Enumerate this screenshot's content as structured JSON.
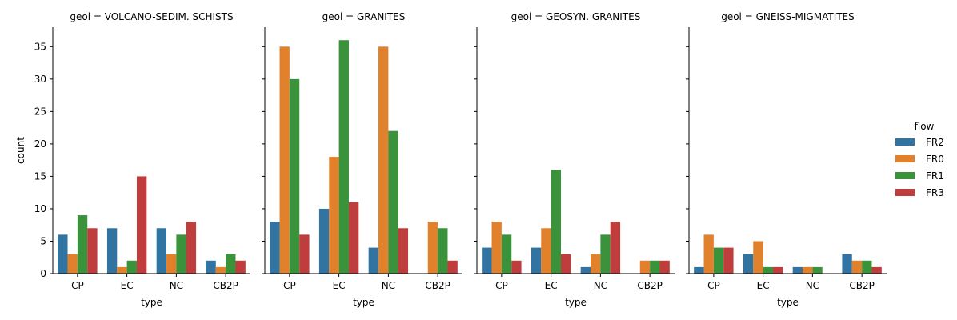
{
  "chart_data": {
    "type": "bar",
    "facet_label_prefix": "geol = ",
    "facets": [
      "VOLCANO-SEDIM. SCHISTS",
      "GRANITES",
      "GEOSYN. GRANITES",
      "GNEISS-MIGMATITES"
    ],
    "categories": [
      "CP",
      "EC",
      "NC",
      "CB2P"
    ],
    "xlabel": "type",
    "ylabel": "count",
    "ylim": [
      0,
      38
    ],
    "yticks": [
      0,
      5,
      10,
      15,
      20,
      25,
      30,
      35
    ],
    "legend": {
      "title": "flow",
      "placement": "right"
    },
    "series": [
      {
        "name": "FR2",
        "color": "#3274a1",
        "values": [
          [
            6,
            7,
            7,
            2
          ],
          [
            8,
            10,
            4,
            0
          ],
          [
            4,
            4,
            1,
            0
          ],
          [
            1,
            3,
            1,
            3
          ]
        ]
      },
      {
        "name": "FR0",
        "color": "#e1812c",
        "values": [
          [
            3,
            1,
            3,
            1
          ],
          [
            35,
            18,
            35,
            8
          ],
          [
            8,
            7,
            3,
            2
          ],
          [
            6,
            5,
            1,
            2
          ]
        ]
      },
      {
        "name": "FR1",
        "color": "#3a923a",
        "values": [
          [
            9,
            2,
            6,
            3
          ],
          [
            30,
            36,
            22,
            7
          ],
          [
            6,
            16,
            6,
            2
          ],
          [
            4,
            1,
            1,
            2
          ]
        ]
      },
      {
        "name": "FR3",
        "color": "#c03d3e",
        "values": [
          [
            7,
            15,
            8,
            2
          ],
          [
            6,
            11,
            7,
            2
          ],
          [
            2,
            3,
            8,
            2
          ],
          [
            4,
            1,
            0,
            1
          ]
        ]
      }
    ]
  }
}
